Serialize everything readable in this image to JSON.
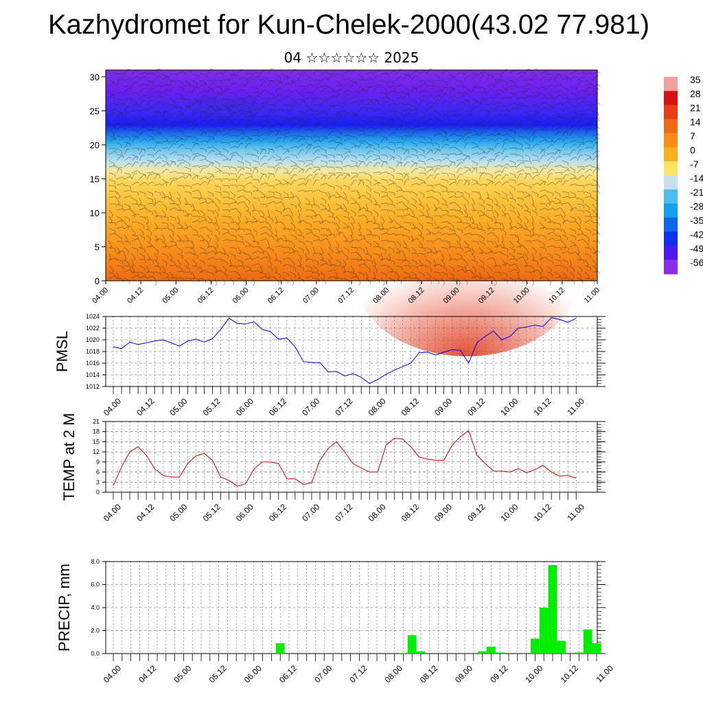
{
  "title": "Kazhydromet for Kun-Chelek-2000(43.02 77.981)",
  "subtitle": "04 ☆☆☆☆☆☆ 2025",
  "chart_data": [
    {
      "type": "heatmap",
      "title": "",
      "ylabel": "",
      "ylim": [
        0,
        31
      ],
      "yticks": [
        0,
        5,
        10,
        15,
        20,
        25,
        30
      ],
      "xlabels": [
        "04.00",
        "04.12",
        "05.00",
        "05.12",
        "06.00",
        "06.12",
        "07.00",
        "07.12",
        "08.00",
        "08.12",
        "09.00",
        "09.12",
        "10.00",
        "10.12",
        "11.00"
      ],
      "colorbar": {
        "labels": [
          "35",
          "28",
          "21",
          "14",
          "7",
          "0",
          "-7",
          "-14",
          "-21",
          "-28",
          "-35",
          "-42",
          "-49",
          "-56"
        ],
        "colors": [
          "#f4a0a0",
          "#d81010",
          "#e83c14",
          "#f06a14",
          "#f88c14",
          "#fcae1c",
          "#fce464",
          "#c8e0ee",
          "#4cbcf0",
          "#10a0f0",
          "#0c64f0",
          "#0c30f0",
          "#5018f0",
          "#8c2ce8"
        ]
      },
      "wind_barbs": true
    },
    {
      "type": "line",
      "ylabel": "PMSL",
      "ylim": [
        1012,
        1024
      ],
      "yticks": [
        1012,
        1014,
        1016,
        1018,
        1020,
        1022,
        1024
      ],
      "xlabels": [
        "04.00",
        "04.12",
        "05.00",
        "05.12",
        "06.00",
        "06.12",
        "07.00",
        "07.12",
        "08.00",
        "08.12",
        "09.00",
        "09.12",
        "10.00",
        "10.12",
        "11.00"
      ],
      "color": "#0000ee",
      "values": [
        1018.8,
        1018.5,
        1019.6,
        1019.2,
        1019.5,
        1019.8,
        1020.0,
        1019.5,
        1018.9,
        1019.8,
        1020.1,
        1019.6,
        1020.2,
        1021.8,
        1023.7,
        1022.8,
        1022.7,
        1023.1,
        1021.8,
        1021.4,
        1020.1,
        1020.3,
        1018.8,
        1016.3,
        1016.1,
        1016.1,
        1014.5,
        1014.6,
        1013.8,
        1014.2,
        1013.6,
        1012.5,
        1013.2,
        1014.1,
        1014.8,
        1015.4,
        1016.0,
        1017.8,
        1017.9,
        1017.4,
        1017.9,
        1018.3,
        1018.2,
        1016.0,
        1019.5,
        1020.6,
        1021.5,
        1020.0,
        1020.6,
        1022.0,
        1022.2,
        1022.5,
        1022.3,
        1023.8,
        1023.5,
        1023.0,
        1023.7
      ]
    },
    {
      "type": "line",
      "ylabel": "TEMP at 2 M",
      "ylim": [
        0,
        21
      ],
      "yticks": [
        0,
        3,
        6,
        9,
        12,
        15,
        18,
        21
      ],
      "xlabels": [
        "04.00",
        "04.12",
        "05.00",
        "05.12",
        "06.00",
        "06.12",
        "07.00",
        "07.12",
        "08.00",
        "08.12",
        "09.00",
        "09.12",
        "10.00",
        "10.12",
        "11.00"
      ],
      "color": "#dd0000",
      "values": [
        2.0,
        7.5,
        12.0,
        13.5,
        11.0,
        7.0,
        5.0,
        4.5,
        4.5,
        8.5,
        10.8,
        11.5,
        9.5,
        4.5,
        3.5,
        1.8,
        2.5,
        6.8,
        9.0,
        9.0,
        8.5,
        4.0,
        4.0,
        2.3,
        2.8,
        9.5,
        13.0,
        15.0,
        12.0,
        8.5,
        7.2,
        6.0,
        6.0,
        14.0,
        16.0,
        15.8,
        13.5,
        10.5,
        9.8,
        9.5,
        9.5,
        14.0,
        16.5,
        18.3,
        11.0,
        8.5,
        6.3,
        6.3,
        6.0,
        7.0,
        5.8,
        6.7,
        8.0,
        6.0,
        4.8,
        5.0,
        4.2
      ]
    },
    {
      "type": "bar",
      "ylabel": "PRECIP, mm",
      "ylim": [
        0,
        8
      ],
      "yticks": [
        "0.0",
        "2.0",
        "4.0",
        "6.0",
        "8.0"
      ],
      "xlabels": [
        "04.00",
        "04.12",
        "05.00",
        "05.12",
        "06.00",
        "06.12",
        "07.00",
        "07.12",
        "08.00",
        "08.12",
        "09.00",
        "09.12",
        "10.00",
        "10.12",
        "11.00"
      ],
      "color": "#00ee00",
      "values": [
        0,
        0,
        0,
        0,
        0,
        0,
        0,
        0,
        0,
        0,
        0,
        0,
        0,
        0,
        0,
        0,
        0,
        0,
        0,
        0.9,
        0,
        0,
        0,
        0,
        0,
        0,
        0,
        0,
        0,
        0,
        0,
        0,
        0,
        0.05,
        1.6,
        0.2,
        0,
        0,
        0,
        0,
        0,
        0,
        0.2,
        0.6,
        0.1,
        0,
        0,
        0,
        1.3,
        4.0,
        7.7,
        1.1,
        0,
        0.1,
        2.1,
        0.9
      ]
    }
  ]
}
